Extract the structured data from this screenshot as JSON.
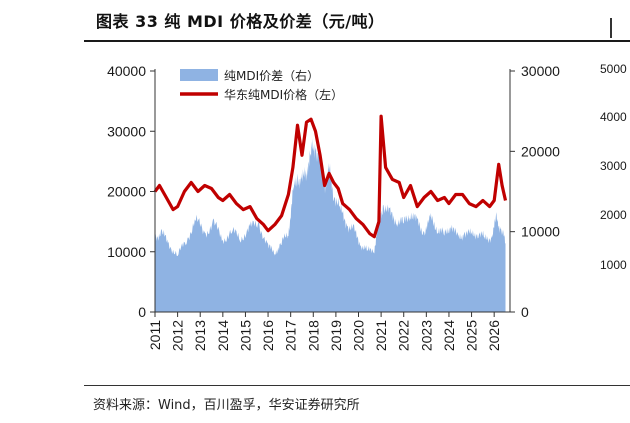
{
  "title": "图表 33 纯 MDI 价格及价差（元/吨）",
  "source": "资料来源：Wind，百川盈孚，华安证券研究所",
  "chart_data": {
    "type": "line+area",
    "x_labels": [
      "2011",
      "2012",
      "2013",
      "2014",
      "2015",
      "2016",
      "2017",
      "2018",
      "2019",
      "2020",
      "2021",
      "2022",
      "2023",
      "2024",
      "2025",
      "2026"
    ],
    "xlim": [
      2011,
      2026.7
    ],
    "left_axis": {
      "ylim": [
        0,
        40000
      ],
      "ticks": [
        "0",
        "10000",
        "20000",
        "30000",
        "40000"
      ]
    },
    "right_axis": {
      "ylim": [
        0,
        30000
      ],
      "ticks": [
        "0",
        "10000",
        "20000",
        "30000"
      ]
    },
    "side_panel_ticks": [
      "1000",
      "2000",
      "3000",
      "4000",
      "5000"
    ],
    "legend": {
      "position": "top-left"
    },
    "series": [
      {
        "name": "纯MDI价差（右）",
        "type": "area",
        "axis": "right",
        "color": "#8fb3e3",
        "x": [
          2011.0,
          2011.3,
          2011.6,
          2012.0,
          2012.4,
          2012.8,
          2013.2,
          2013.6,
          2014.0,
          2014.4,
          2014.8,
          2015.2,
          2015.6,
          2016.0,
          2016.3,
          2016.6,
          2016.9,
          2017.1,
          2017.3,
          2017.5,
          2017.7,
          2017.9,
          2018.1,
          2018.3,
          2018.5,
          2018.7,
          2018.9,
          2019.2,
          2019.5,
          2019.8,
          2020.1,
          2020.4,
          2020.7,
          2020.9,
          2021.1,
          2021.4,
          2021.7,
          2022.0,
          2022.3,
          2022.6,
          2022.9,
          2023.2,
          2023.5,
          2023.8,
          2024.1,
          2024.4,
          2024.7,
          2025.0,
          2025.3,
          2025.6,
          2025.9,
          2026.1,
          2026.3,
          2026.5
        ],
        "values": [
          9500,
          9800,
          8500,
          7000,
          9000,
          11500,
          9800,
          11000,
          9000,
          10000,
          9200,
          10500,
          11000,
          8000,
          7500,
          8500,
          10000,
          14500,
          17000,
          16000,
          18000,
          19500,
          21000,
          18500,
          16000,
          17500,
          15000,
          12500,
          11000,
          10000,
          8500,
          7500,
          8000,
          11000,
          13500,
          12000,
          11500,
          11000,
          12500,
          11000,
          10000,
          11500,
          10500,
          9500,
          11000,
          9000,
          10000,
          9500,
          10000,
          9000,
          9500,
          11500,
          10500,
          8500
        ]
      },
      {
        "name": "华东纯MDI价格（左）",
        "type": "line",
        "axis": "left",
        "color": "#c00000",
        "x": [
          2011.0,
          2011.2,
          2011.5,
          2011.8,
          2012.0,
          2012.3,
          2012.6,
          2012.9,
          2013.2,
          2013.5,
          2013.8,
          2014.0,
          2014.3,
          2014.6,
          2014.9,
          2015.2,
          2015.5,
          2015.8,
          2016.0,
          2016.3,
          2016.6,
          2016.9,
          2017.1,
          2017.3,
          2017.5,
          2017.7,
          2017.9,
          2018.1,
          2018.3,
          2018.5,
          2018.7,
          2018.9,
          2019.1,
          2019.3,
          2019.6,
          2019.9,
          2020.2,
          2020.5,
          2020.7,
          2020.9,
          2021.0,
          2021.2,
          2021.5,
          2021.8,
          2022.0,
          2022.3,
          2022.6,
          2022.9,
          2023.2,
          2023.5,
          2023.8,
          2024.0,
          2024.3,
          2024.6,
          2024.9,
          2025.2,
          2025.5,
          2025.8,
          2026.0,
          2026.2,
          2026.35,
          2026.5
        ],
        "values": [
          20000,
          21000,
          19000,
          17000,
          17500,
          20000,
          21500,
          20000,
          21000,
          20500,
          19000,
          18500,
          19500,
          18000,
          17000,
          17500,
          15500,
          14500,
          13500,
          14500,
          16000,
          19500,
          24000,
          31000,
          26000,
          31500,
          32000,
          30000,
          26000,
          21000,
          23000,
          21500,
          20500,
          18000,
          17000,
          15500,
          14500,
          13000,
          12500,
          15000,
          32500,
          24000,
          22000,
          21500,
          19000,
          21000,
          17500,
          19000,
          20000,
          18500,
          19000,
          18000,
          19500,
          19500,
          18000,
          17500,
          18500,
          17500,
          18500,
          24500,
          21000,
          18500
        ]
      }
    ]
  }
}
